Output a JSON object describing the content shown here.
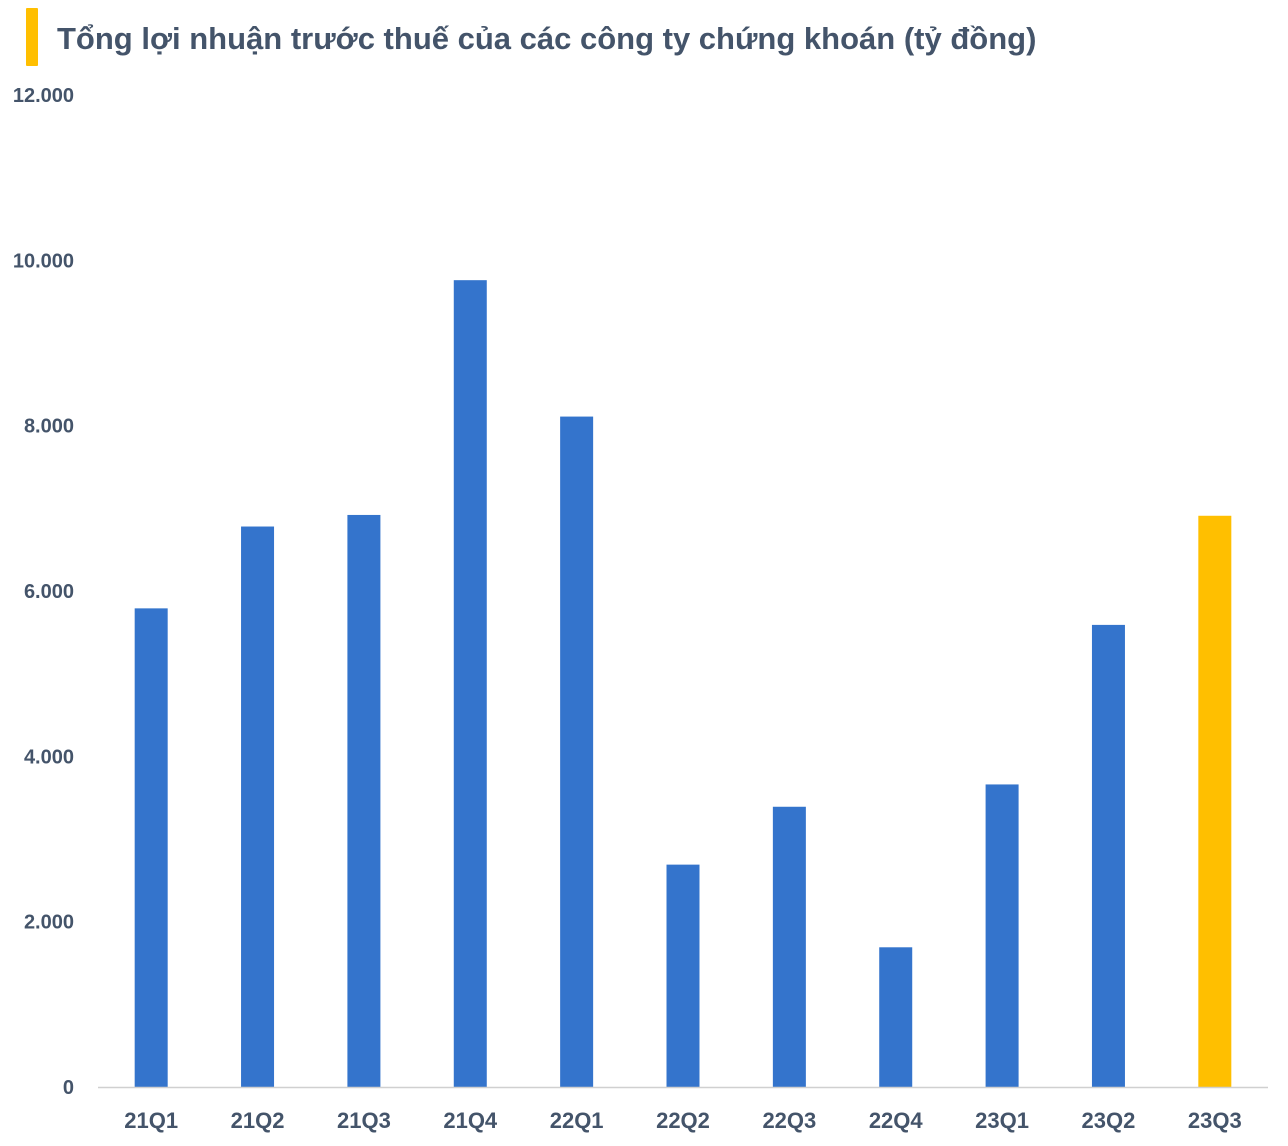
{
  "colors": {
    "bar": "#3474cc",
    "highlight": "#ffbf00",
    "accent": "#ffbf00",
    "text": "#44546a",
    "axis": "#d0d0d0"
  },
  "chart_data": {
    "type": "bar",
    "title": "Tổng lợi nhuận trước thuế của các công ty chứng khoán (tỷ đồng)",
    "xlabel": "",
    "ylabel": "",
    "ylim": [
      0,
      12000
    ],
    "yticks": [
      0,
      2000,
      4000,
      6000,
      8000,
      10000,
      12000
    ],
    "ytick_labels": [
      "0",
      "2.000",
      "4.000",
      "6.000",
      "8.000",
      "10.000",
      "12.000"
    ],
    "grid": false,
    "legend": "none",
    "categories": [
      "21Q1",
      "21Q2",
      "21Q3",
      "21Q4",
      "22Q1",
      "22Q2",
      "22Q3",
      "22Q4",
      "23Q1",
      "23Q2",
      "23Q3"
    ],
    "values": [
      5790,
      6780,
      6920,
      9760,
      8110,
      2690,
      3390,
      1690,
      3660,
      5590,
      6910
    ],
    "highlight_category": "23Q3"
  }
}
